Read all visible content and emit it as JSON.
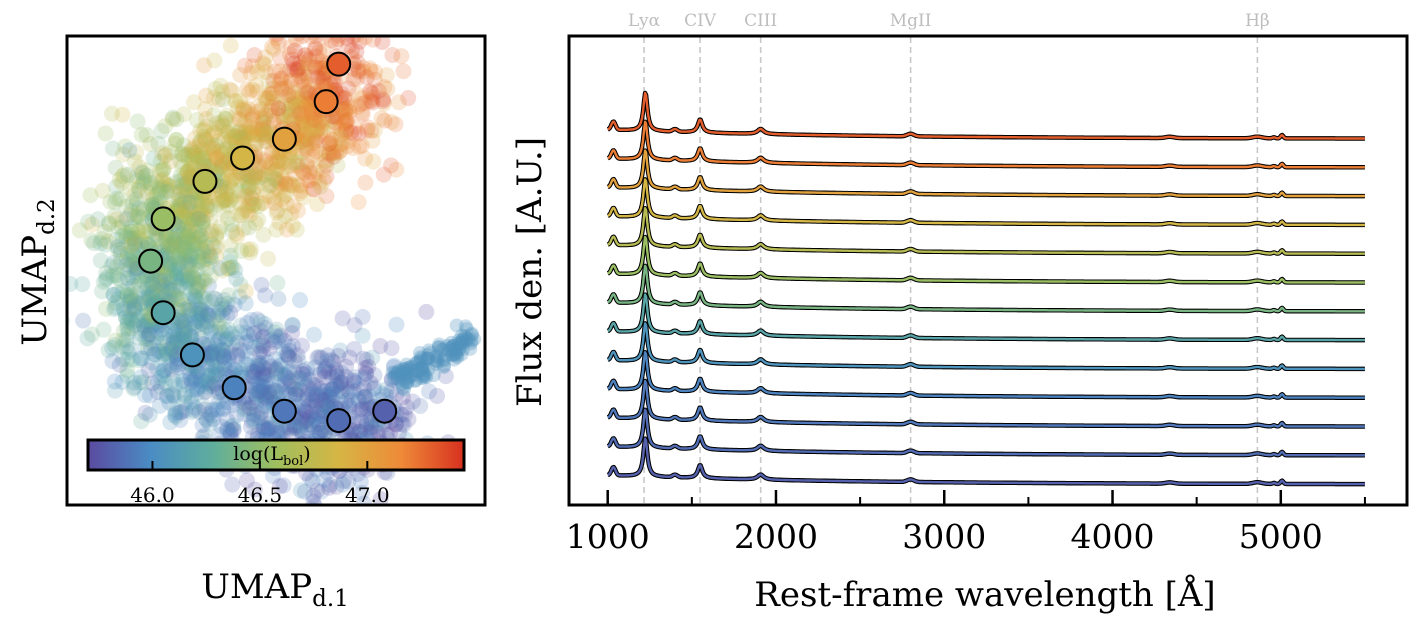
{
  "chart_data": [
    {
      "type": "scatter",
      "xlabel_main": "UMAP",
      "xlabel_sub": "d.1",
      "ylabel_main": "UMAP",
      "ylabel_sub": "d.2",
      "x_range": [
        0,
        10
      ],
      "y_range": [
        0,
        10
      ],
      "colorbar": {
        "label_main": "log(L",
        "label_sub": "bol",
        "label_close": ")",
        "range": [
          45.7,
          47.45
        ],
        "ticks": [
          "46.0",
          "46.5",
          "47.0"
        ],
        "tick_values": [
          46.0,
          46.5,
          47.0
        ],
        "colormap": [
          "#5b4aa0",
          "#4a8cc4",
          "#5fae9c",
          "#9fbf5e",
          "#d6b544",
          "#ee8a38",
          "#d7301f"
        ]
      },
      "markers": [
        {
          "x": 6.5,
          "y": 9.4,
          "logL": 47.3
        },
        {
          "x": 6.2,
          "y": 8.6,
          "logL": 47.2
        },
        {
          "x": 5.2,
          "y": 7.8,
          "logL": 47.0
        },
        {
          "x": 4.2,
          "y": 7.4,
          "logL": 46.85
        },
        {
          "x": 3.3,
          "y": 6.9,
          "logL": 46.7
        },
        {
          "x": 2.3,
          "y": 6.1,
          "logL": 46.55
        },
        {
          "x": 2.0,
          "y": 5.2,
          "logL": 46.4
        },
        {
          "x": 2.3,
          "y": 4.1,
          "logL": 46.2
        },
        {
          "x": 3.0,
          "y": 3.2,
          "logL": 46.05
        },
        {
          "x": 4.0,
          "y": 2.5,
          "logL": 45.95
        },
        {
          "x": 5.2,
          "y": 2.0,
          "logL": 45.9
        },
        {
          "x": 6.5,
          "y": 1.8,
          "logL": 45.85
        },
        {
          "x": 7.6,
          "y": 2.0,
          "logL": 45.8
        }
      ]
    },
    {
      "type": "line",
      "xlabel": "Rest-frame wavelength [Å]",
      "ylabel": "Flux den. [A.U.]",
      "xlim": [
        770,
        5750
      ],
      "x_ticks": [
        1000,
        2000,
        3000,
        4000,
        5000
      ],
      "y_ticks_shown": false,
      "wavelength_range": [
        1000,
        5500
      ],
      "n_spectra": 13,
      "spectrum_offsets": [
        12,
        11,
        10,
        9,
        8,
        7,
        6,
        5,
        4,
        3,
        2,
        1,
        0
      ],
      "spectrum_logL": [
        47.3,
        47.2,
        47.0,
        46.85,
        46.7,
        46.55,
        46.4,
        46.2,
        46.05,
        45.95,
        45.9,
        45.85,
        45.8
      ],
      "emission_lines": [
        {
          "label": "Lyα",
          "wavelength": 1216
        },
        {
          "label": "CIV",
          "wavelength": 1549
        },
        {
          "label": "CIII",
          "wavelength": 1909
        },
        {
          "label": "MgII",
          "wavelength": 2800
        },
        {
          "label": "Hβ",
          "wavelength": 4861
        }
      ]
    }
  ],
  "colors": {
    "axes": "#000000",
    "line_marker": "#c8c8c8",
    "line_label": "#bdbdbd"
  }
}
